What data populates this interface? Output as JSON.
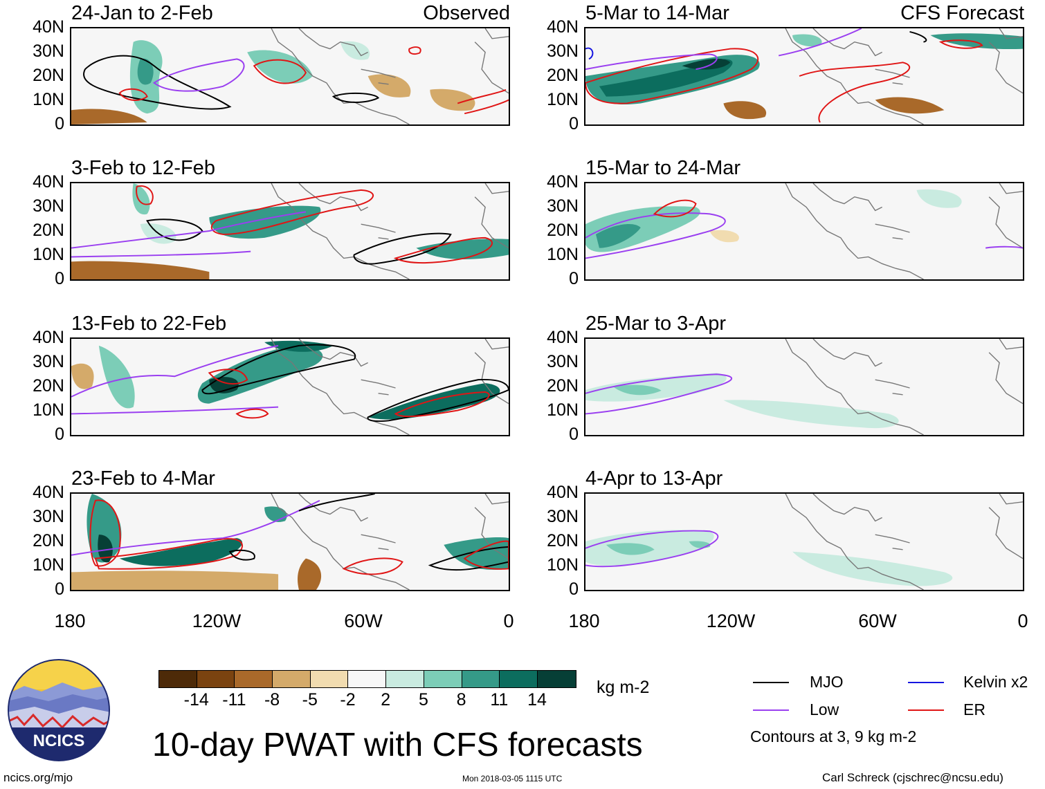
{
  "panels": [
    {
      "title": "24-Jan to 2-Feb",
      "label": "Observed"
    },
    {
      "title": "5-Mar to 14-Mar",
      "label": "CFS Forecast"
    },
    {
      "title": "3-Feb to 12-Feb",
      "label": ""
    },
    {
      "title": "15-Mar to 24-Mar",
      "label": ""
    },
    {
      "title": "13-Feb to 22-Feb",
      "label": ""
    },
    {
      "title": "25-Mar to 3-Apr",
      "label": ""
    },
    {
      "title": "23-Feb to 4-Mar",
      "label": ""
    },
    {
      "title": "4-Apr to 13-Apr",
      "label": ""
    }
  ],
  "y_ticks": [
    "40N",
    "30N",
    "20N",
    "10N",
    "0"
  ],
  "x_ticks": [
    "180",
    "120W",
    "60W",
    "0"
  ],
  "colorbar": {
    "unit": "kg m-2",
    "ticks": [
      "-14",
      "-11",
      "-8",
      "-5",
      "-2",
      "2",
      "5",
      "8",
      "11",
      "14"
    ],
    "colors": [
      "#4d2a08",
      "#7a4310",
      "#a9692a",
      "#d4aa6a",
      "#f1dcb0",
      "#f7f7f7",
      "#c9ebe0",
      "#7ccdb7",
      "#359a88",
      "#0c6d5e",
      "#063f36"
    ]
  },
  "legend": {
    "mjo": "MJO",
    "low": "Low",
    "kelvin": "Kelvin x2",
    "er": "ER",
    "note": "Contours at 3, 9 kg m-2",
    "colors": {
      "mjo": "#000000",
      "low": "#9a3ff0",
      "kelvin": "#1515e0",
      "er": "#e01515"
    }
  },
  "branding": {
    "logo_text": "NCICS",
    "url": "ncics.org/mjo",
    "author": "Carl Schreck (cjschrec@ncsu.edu)"
  },
  "main_title": "10-day PWAT with CFS forecasts",
  "timestamp": "Mon 2018-03-05 1115 UTC"
}
